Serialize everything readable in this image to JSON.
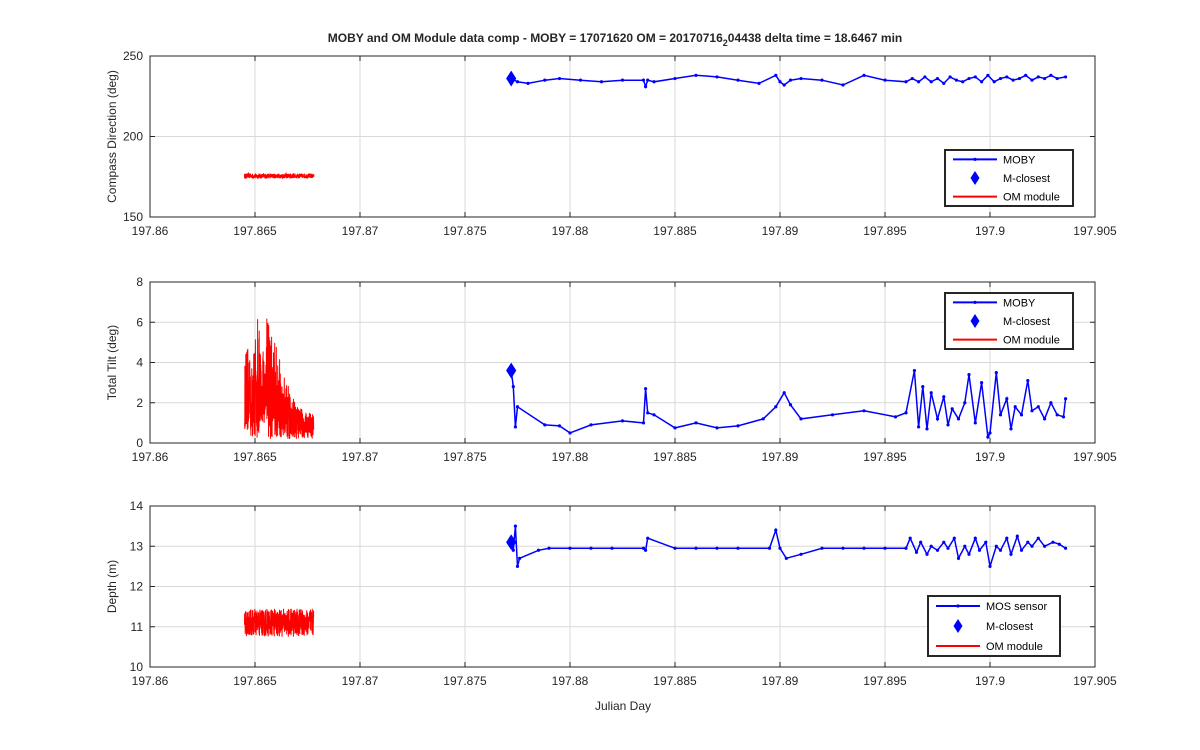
{
  "figure": {
    "title_main": "MOBY and OM Module data comp - MOBY = 17071620 OM = 20170716",
    "title_sub": "2",
    "title_tail": "04438 delta time = 18.6467 min",
    "xlabel": "Julian Day"
  },
  "colors": {
    "moby": "#0000ff",
    "om": "#ff0000",
    "grid": "#d9d9d9",
    "axis": "#262626"
  },
  "chart_data": [
    {
      "type": "line",
      "ylabel": "Compass Direction (deg)",
      "xlim": [
        197.86,
        197.905
      ],
      "ylim": [
        150,
        250
      ],
      "xticks": [
        197.86,
        197.865,
        197.87,
        197.875,
        197.88,
        197.885,
        197.89,
        197.895,
        197.9,
        197.905
      ],
      "xtick_labels": [
        "197.86",
        "197.865",
        "197.87",
        "197.875",
        "197.88",
        "197.885",
        "197.89",
        "197.895",
        "197.9",
        "197.905"
      ],
      "yticks": [
        150,
        200,
        250
      ],
      "ytick_labels": [
        "150",
        "200",
        "250"
      ],
      "grid": true,
      "legend_position": "bottom-right",
      "legend": [
        "MOBY",
        "M-closest",
        "OM module"
      ],
      "series": [
        {
          "name": "MOBY",
          "style": "line-dot",
          "x": [
            197.8772,
            197.8775,
            197.878,
            197.8788,
            197.8795,
            197.8805,
            197.8815,
            197.8825,
            197.8835,
            197.8836,
            197.8837,
            197.884,
            197.885,
            197.886,
            197.887,
            197.888,
            197.889,
            197.8898,
            197.89,
            197.8902,
            197.8905,
            197.891,
            197.892,
            197.893,
            197.894,
            197.895,
            197.896,
            197.8963,
            197.8966,
            197.8969,
            197.8972,
            197.8975,
            197.8978,
            197.8981,
            197.8984,
            197.8987,
            197.899,
            197.8993,
            197.8996,
            197.8999,
            197.9002,
            197.9005,
            197.9008,
            197.9011,
            197.9014,
            197.9017,
            197.902,
            197.9023,
            197.9026,
            197.9029,
            197.9032,
            197.9036
          ],
          "y": [
            236,
            234,
            233,
            235,
            236,
            235,
            234,
            235,
            235,
            231,
            235,
            234,
            236,
            238,
            237,
            235,
            233,
            238,
            234,
            232,
            235,
            236,
            235,
            232,
            238,
            235,
            234,
            236,
            234,
            237,
            234,
            236,
            233,
            237,
            235,
            234,
            236,
            237,
            234,
            238,
            234,
            236,
            237,
            235,
            236,
            238,
            235,
            237,
            236,
            238,
            236,
            237
          ]
        },
        {
          "name": "M-closest",
          "style": "diamond",
          "x": [
            197.8772
          ],
          "y": [
            236
          ]
        },
        {
          "name": "OM module",
          "style": "noise",
          "x_range": [
            197.8645,
            197.8678
          ],
          "y_center": 175.5,
          "y_spread": 1.5
        }
      ]
    },
    {
      "type": "line",
      "ylabel": "Total Tilt (deg)",
      "xlim": [
        197.86,
        197.905
      ],
      "ylim": [
        0,
        8
      ],
      "xticks": [
        197.86,
        197.865,
        197.87,
        197.875,
        197.88,
        197.885,
        197.89,
        197.895,
        197.9,
        197.905
      ],
      "xtick_labels": [
        "197.86",
        "197.865",
        "197.87",
        "197.875",
        "197.88",
        "197.885",
        "197.89",
        "197.895",
        "197.9",
        "197.905"
      ],
      "yticks": [
        0,
        2,
        4,
        6,
        8
      ],
      "ytick_labels": [
        "0",
        "2",
        "4",
        "6",
        "8"
      ],
      "grid": true,
      "legend_position": "top-right",
      "legend": [
        "MOBY",
        "M-closest",
        "OM module"
      ],
      "series": [
        {
          "name": "MOBY",
          "style": "line-dot",
          "x": [
            197.8772,
            197.8773,
            197.8774,
            197.8775,
            197.8788,
            197.8795,
            197.88,
            197.881,
            197.8825,
            197.8835,
            197.8836,
            197.8837,
            197.884,
            197.885,
            197.886,
            197.887,
            197.888,
            197.8892,
            197.8898,
            197.8902,
            197.8905,
            197.891,
            197.8925,
            197.894,
            197.8955,
            197.896,
            197.8964,
            197.8966,
            197.8968,
            197.897,
            197.8972,
            197.8975,
            197.8978,
            197.898,
            197.8982,
            197.8985,
            197.8988,
            197.899,
            197.8993,
            197.8996,
            197.8999,
            197.9,
            197.9003,
            197.9005,
            197.9008,
            197.901,
            197.9012,
            197.9015,
            197.9018,
            197.902,
            197.9023,
            197.9026,
            197.9029,
            197.9032,
            197.9035,
            197.9036
          ],
          "y": [
            3.6,
            2.8,
            0.8,
            1.8,
            0.9,
            0.85,
            0.5,
            0.9,
            1.1,
            1.0,
            2.7,
            1.5,
            1.4,
            0.75,
            1.0,
            0.75,
            0.85,
            1.2,
            1.8,
            2.5,
            1.9,
            1.2,
            1.4,
            1.6,
            1.3,
            1.5,
            3.6,
            0.8,
            2.8,
            0.7,
            2.5,
            1.2,
            2.3,
            0.9,
            1.7,
            1.2,
            2.0,
            3.4,
            1.0,
            3.0,
            0.3,
            0.5,
            3.5,
            1.4,
            2.2,
            0.7,
            1.8,
            1.4,
            3.1,
            1.6,
            1.8,
            1.2,
            2.0,
            1.4,
            1.3,
            2.2
          ]
        },
        {
          "name": "M-closest",
          "style": "diamond",
          "x": [
            197.8772
          ],
          "y": [
            3.6
          ]
        },
        {
          "name": "OM module",
          "style": "noise",
          "x_range": [
            197.8645,
            197.8678
          ],
          "y_center": 1.5,
          "y_spread": 1.5,
          "y_peak": 6.6
        }
      ]
    },
    {
      "type": "line",
      "ylabel": "Depth (m)",
      "xlim": [
        197.86,
        197.905
      ],
      "ylim": [
        10,
        14
      ],
      "xticks": [
        197.86,
        197.865,
        197.87,
        197.875,
        197.88,
        197.885,
        197.89,
        197.895,
        197.9,
        197.905
      ],
      "xtick_labels": [
        "197.86",
        "197.865",
        "197.87",
        "197.875",
        "197.88",
        "197.885",
        "197.89",
        "197.895",
        "197.9",
        "197.905"
      ],
      "yticks": [
        10,
        11,
        12,
        13,
        14
      ],
      "ytick_labels": [
        "10",
        "11",
        "12",
        "13",
        "14"
      ],
      "grid": true,
      "legend_position": "bottom-right",
      "legend": [
        "MOS sensor",
        "M-closest",
        "OM module"
      ],
      "series": [
        {
          "name": "MOS sensor",
          "style": "line-dot",
          "x": [
            197.8772,
            197.8773,
            197.8774,
            197.8775,
            197.8776,
            197.8785,
            197.879,
            197.88,
            197.881,
            197.882,
            197.8835,
            197.8836,
            197.8837,
            197.885,
            197.886,
            197.887,
            197.888,
            197.8895,
            197.8898,
            197.89,
            197.8903,
            197.891,
            197.892,
            197.893,
            197.894,
            197.895,
            197.896,
            197.8962,
            197.8965,
            197.8967,
            197.897,
            197.8972,
            197.8975,
            197.8978,
            197.898,
            197.8983,
            197.8985,
            197.8988,
            197.899,
            197.8993,
            197.8995,
            197.8998,
            197.9,
            197.9003,
            197.9005,
            197.9008,
            197.901,
            197.9013,
            197.9015,
            197.9018,
            197.902,
            197.9023,
            197.9026,
            197.903,
            197.9033,
            197.9036
          ],
          "y": [
            13.1,
            12.9,
            13.5,
            12.5,
            12.7,
            12.9,
            12.95,
            12.95,
            12.95,
            12.95,
            12.95,
            12.9,
            13.2,
            12.95,
            12.95,
            12.95,
            12.95,
            12.95,
            13.4,
            12.95,
            12.7,
            12.8,
            12.95,
            12.95,
            12.95,
            12.95,
            12.95,
            13.2,
            12.85,
            13.1,
            12.8,
            13.0,
            12.9,
            13.1,
            12.95,
            13.2,
            12.7,
            13.0,
            12.8,
            13.2,
            12.9,
            13.1,
            12.5,
            13.0,
            12.9,
            13.2,
            12.8,
            13.25,
            12.9,
            13.1,
            13.0,
            13.2,
            13.0,
            13.1,
            13.05,
            12.95
          ]
        },
        {
          "name": "M-closest",
          "style": "diamond",
          "x": [
            197.8772
          ],
          "y": [
            13.1
          ]
        },
        {
          "name": "OM module",
          "style": "noise",
          "x_range": [
            197.8645,
            197.8678
          ],
          "y_center": 11.1,
          "y_spread": 0.35
        }
      ]
    }
  ]
}
